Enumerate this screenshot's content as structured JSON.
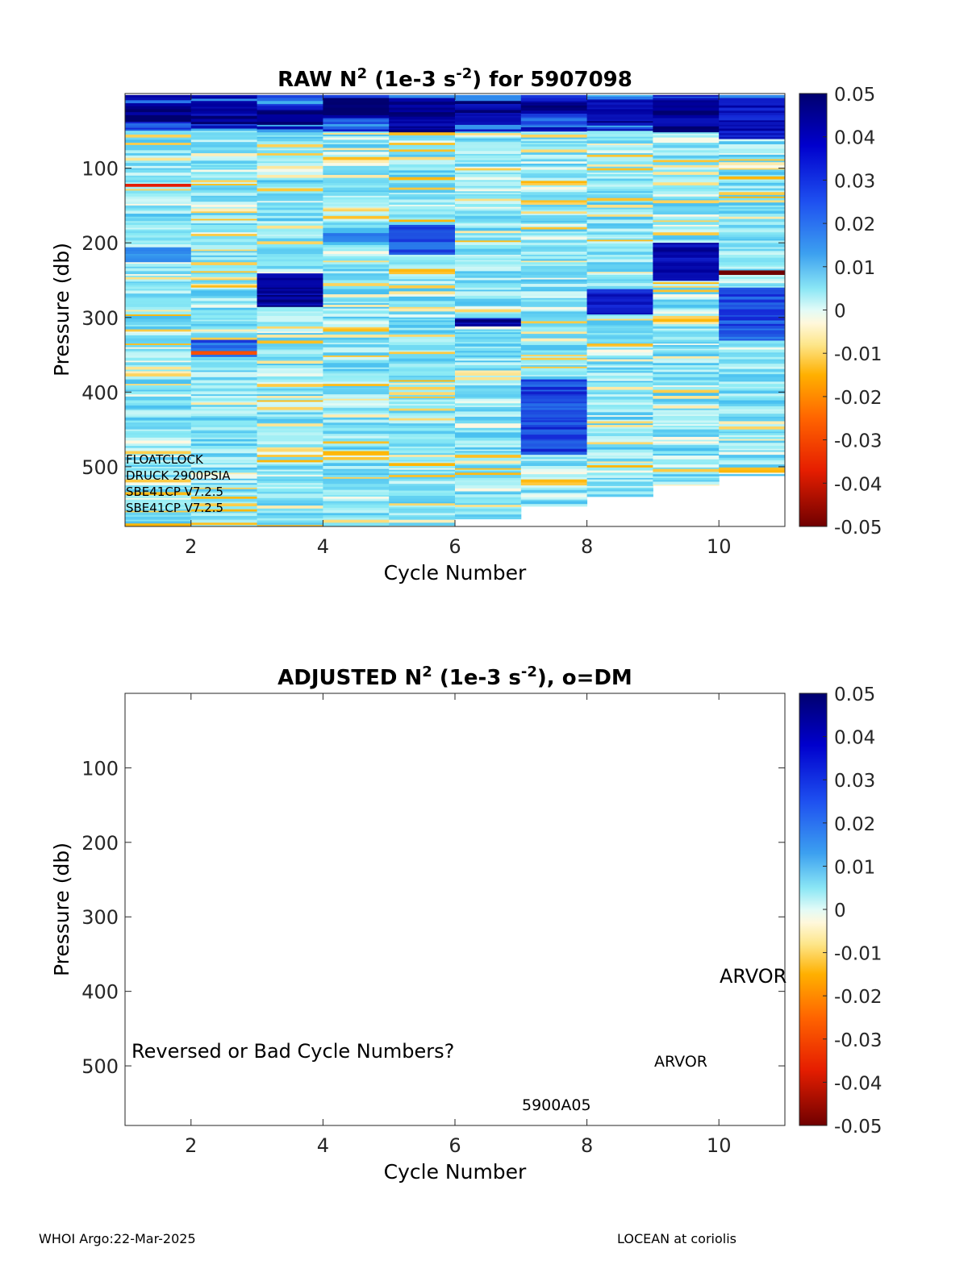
{
  "chart_data": [
    {
      "type": "heatmap",
      "title": {
        "prefix": "RAW N",
        "sup1": "2",
        "mid": " (1e-3 s",
        "sup2": "-2",
        "suffix": ") for 5907098"
      },
      "xlabel": "Cycle Number",
      "ylabel": "Pressure (db)",
      "xlim": [
        1,
        11
      ],
      "ylim": [
        0,
        580
      ],
      "y_reversed": true,
      "xticks": [
        2,
        4,
        6,
        8,
        10
      ],
      "yticks": [
        100,
        200,
        300,
        400,
        500
      ],
      "colorbar": {
        "range": [
          -0.05,
          0.05
        ],
        "ticks": [
          "0.05",
          "0.04",
          "0.03",
          "0.02",
          "0.01",
          "0",
          "-0.01",
          "-0.02",
          "-0.03",
          "-0.04",
          "-0.05"
        ],
        "colormap": "jet-with-white-center"
      },
      "annotations": [
        "FLOATCLOCK",
        "DRUCK 2900PSIA",
        "SBE41CP V7.2.5",
        "SBE41CP V7.2.5"
      ],
      "cycles": [
        {
          "cycle": 1,
          "max_pressure": 580
        },
        {
          "cycle": 2,
          "max_pressure": 580
        },
        {
          "cycle": 3,
          "max_pressure": 580
        },
        {
          "cycle": 4,
          "max_pressure": 580
        },
        {
          "cycle": 5,
          "max_pressure": 580
        },
        {
          "cycle": 6,
          "max_pressure": 570
        },
        {
          "cycle": 7,
          "max_pressure": 553
        },
        {
          "cycle": 8,
          "max_pressure": 540
        },
        {
          "cycle": 9,
          "max_pressure": 525
        },
        {
          "cycle": 10,
          "max_pressure": 512
        }
      ],
      "features": [
        {
          "cycle": 1,
          "p": [
            10,
            35
          ],
          "v": 0.048
        },
        {
          "cycle": 1,
          "p": [
            120,
            123
          ],
          "v": -0.035
        },
        {
          "cycle": 1,
          "p": [
            205,
            225
          ],
          "v": 0.018
        },
        {
          "cycle": 2,
          "p": [
            8,
            40
          ],
          "v": 0.045
        },
        {
          "cycle": 2,
          "p": [
            330,
            350
          ],
          "v": 0.028
        },
        {
          "cycle": 2,
          "p": [
            345,
            348
          ],
          "v": -0.025
        },
        {
          "cycle": 3,
          "p": [
            20,
            40
          ],
          "v": 0.046
        },
        {
          "cycle": 3,
          "p": [
            240,
            285
          ],
          "v": 0.045
        },
        {
          "cycle": 4,
          "p": [
            3,
            30
          ],
          "v": 0.05
        },
        {
          "cycle": 4,
          "p": [
            180,
            195
          ],
          "v": 0.02
        },
        {
          "cycle": 5,
          "p": [
            3,
            50
          ],
          "v": 0.046
        },
        {
          "cycle": 5,
          "p": [
            175,
            215
          ],
          "v": 0.03
        },
        {
          "cycle": 6,
          "p": [
            10,
            40
          ],
          "v": 0.045
        },
        {
          "cycle": 6,
          "p": [
            300,
            310
          ],
          "v": 0.045
        },
        {
          "cycle": 7,
          "p": [
            8,
            25
          ],
          "v": 0.048
        },
        {
          "cycle": 7,
          "p": [
            380,
            480
          ],
          "v": 0.032
        },
        {
          "cycle": 8,
          "p": [
            8,
            40
          ],
          "v": 0.045
        },
        {
          "cycle": 8,
          "p": [
            260,
            295
          ],
          "v": 0.038
        },
        {
          "cycle": 9,
          "p": [
            5,
            50
          ],
          "v": 0.046
        },
        {
          "cycle": 9,
          "p": [
            200,
            248
          ],
          "v": 0.042
        },
        {
          "cycle": 10,
          "p": [
            10,
            60
          ],
          "v": 0.04
        },
        {
          "cycle": 10,
          "p": [
            236,
            240
          ],
          "v": -0.045
        },
        {
          "cycle": 10,
          "p": [
            260,
            330
          ],
          "v": 0.03
        }
      ]
    },
    {
      "type": "heatmap",
      "title": {
        "prefix": "ADJUSTED N",
        "sup1": "2",
        "mid": " (1e-3 s",
        "sup2": "-2",
        "suffix": "), o=DM"
      },
      "xlabel": "Cycle Number",
      "ylabel": "Pressure (db)",
      "xlim": [
        1,
        11
      ],
      "ylim": [
        0,
        580
      ],
      "y_reversed": true,
      "xticks": [
        2,
        4,
        6,
        8,
        10
      ],
      "yticks": [
        100,
        200,
        300,
        400,
        500
      ],
      "colorbar": {
        "range": [
          -0.05,
          0.05
        ],
        "ticks": [
          "0.05",
          "0.04",
          "0.03",
          "0.02",
          "0.01",
          "0",
          "-0.01",
          "-0.02",
          "-0.03",
          "-0.04",
          "-0.05"
        ],
        "colormap": "jet-with-white-center"
      },
      "annotations": {
        "warning": "Reversed or Bad Cycle Numbers?",
        "arvor_big": "ARVOR",
        "arvor_small": "ARVOR",
        "serial": "5900A05"
      },
      "cycles": []
    }
  ],
  "footer": {
    "left": "WHOI Argo:22-Mar-2025",
    "right": "LOCEAN at coriolis"
  }
}
